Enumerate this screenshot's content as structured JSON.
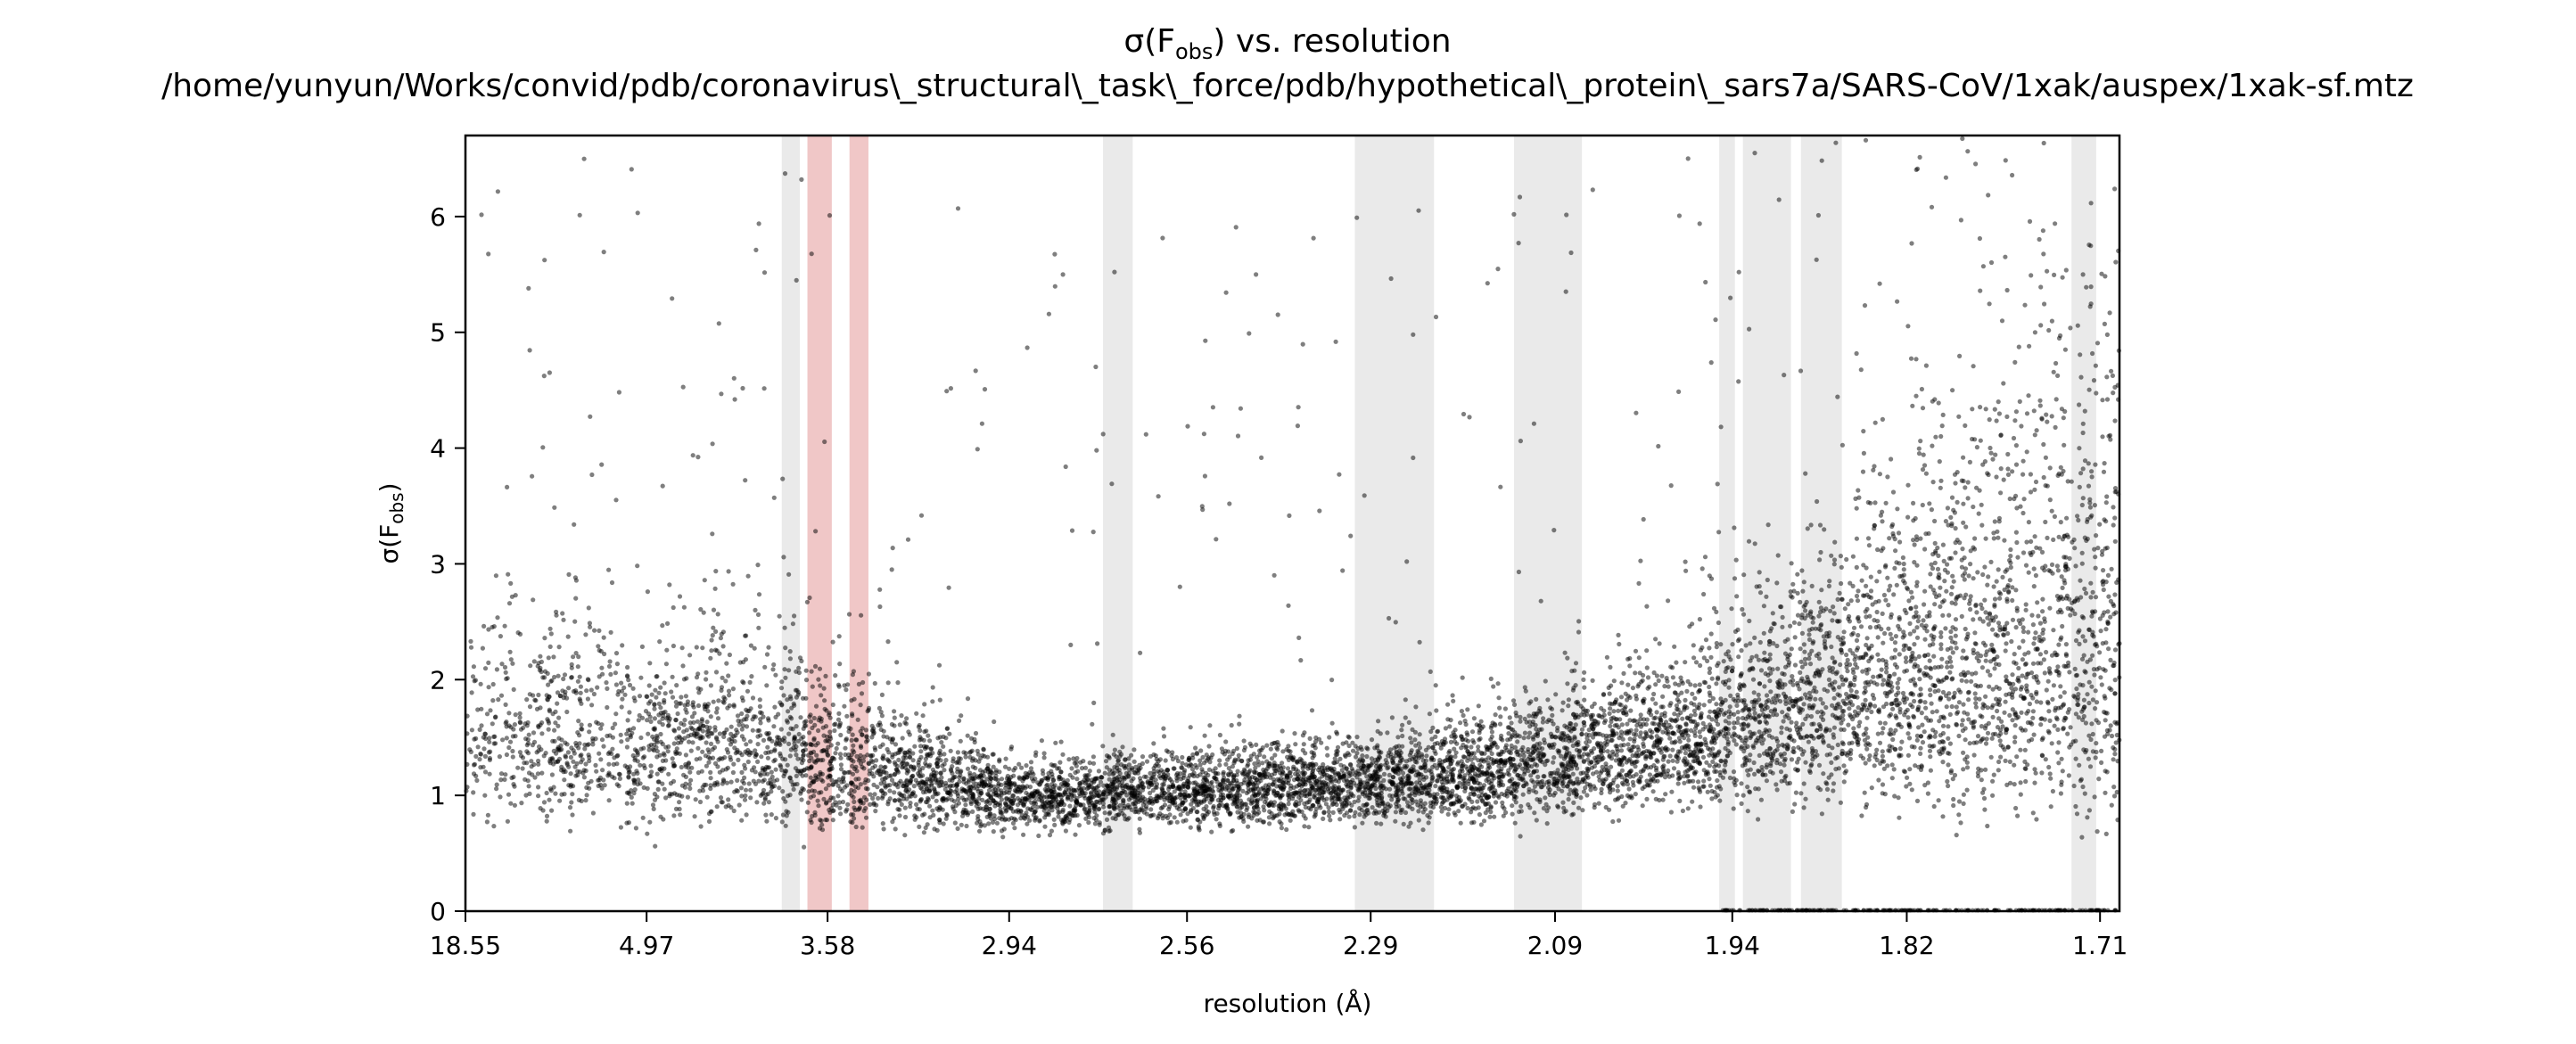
{
  "chart_data": {
    "type": "scatter",
    "title_main": "σ(F",
    "title_sub": "obs",
    "title_tail": ") vs. resolution",
    "subtitle": "/home/yunyun/Works/convid/pdb/coronavirus\\_structural\\_task\\_force/pdb/hypothetical\\_protein\\_sars7a/SARS-CoV/1xak/auspex/1xak-sf.mtz",
    "xlabel": "resolution (Å)",
    "ylabel_main": "σ(F",
    "ylabel_sub": "obs",
    "ylabel_tail": ")",
    "x_scale": "1/d²",
    "xlim": [
      18.55,
      1.7
    ],
    "ylim": [
      0,
      6.7
    ],
    "x_ticks": [
      18.55,
      4.97,
      3.58,
      2.94,
      2.56,
      2.29,
      2.09,
      1.94,
      1.82,
      1.71
    ],
    "x_tick_labels": [
      "18.55",
      "4.97",
      "3.58",
      "2.94",
      "2.56",
      "2.29",
      "2.09",
      "1.94",
      "1.82",
      "1.71"
    ],
    "y_ticks": [
      0,
      1,
      2,
      3,
      4,
      5,
      6
    ],
    "y_tick_labels": [
      "0",
      "1",
      "2",
      "3",
      "4",
      "5",
      "6"
    ],
    "grid": false,
    "legend": "none",
    "colors": {
      "points": "#000000",
      "grey_band": "#d9d9d9",
      "red_band": "#e8a9a9"
    },
    "grey_bands": [
      [
        3.82,
        3.72
      ],
      [
        2.72,
        2.66
      ],
      [
        2.31,
        2.215
      ],
      [
        2.13,
        2.065
      ],
      [
        1.95,
        1.938
      ],
      [
        1.932,
        1.897
      ],
      [
        1.89,
        1.862
      ],
      [
        1.725,
        1.712
      ]
    ],
    "red_bands": [
      [
        3.68,
        3.56
      ],
      [
        3.48,
        3.4
      ]
    ],
    "trend": [
      {
        "resolution": 10.0,
        "sigma": 1.5,
        "spread": 0.55
      },
      {
        "resolution": 4.97,
        "sigma": 1.5,
        "spread": 0.55
      },
      {
        "resolution": 3.58,
        "sigma": 1.35,
        "spread": 0.5
      },
      {
        "resolution": 2.94,
        "sigma": 1.0,
        "spread": 0.28
      },
      {
        "resolution": 2.56,
        "sigma": 1.05,
        "spread": 0.28
      },
      {
        "resolution": 2.29,
        "sigma": 1.1,
        "spread": 0.3
      },
      {
        "resolution": 2.09,
        "sigma": 1.3,
        "spread": 0.35
      },
      {
        "resolution": 1.94,
        "sigma": 1.6,
        "spread": 0.42
      },
      {
        "resolution": 1.82,
        "sigma": 2.1,
        "spread": 0.6
      },
      {
        "resolution": 1.71,
        "sigma": 2.5,
        "spread": 0.9
      }
    ],
    "point_count": 9000
  }
}
